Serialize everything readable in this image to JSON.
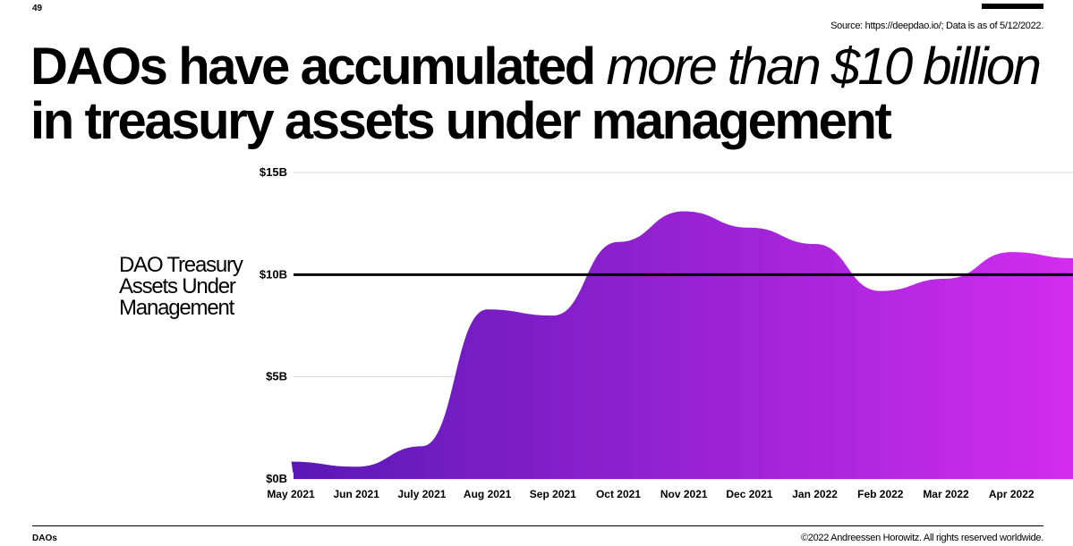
{
  "page": {
    "number": "49",
    "source": "Source: https://deepdao.io/; Data is as of 5/12/2022.",
    "headline_bold": "DAOs have accumulated",
    "headline_italic": "more than $10 billion",
    "headline_line2": "in treasury assets under management",
    "footer_left": "DAOs",
    "footer_right": "©2022 Andreessen Horowitz. All rights reserved worldwide."
  },
  "colors": {
    "area_start": "#5a18b6",
    "area_end": "#d22cf0",
    "reference_line": "#000000",
    "gridline": "#d9d9d9"
  },
  "chart_data": {
    "type": "area",
    "series_label": "DAO Treasury Assets Under Management",
    "x": [
      "May 2021",
      "Jun 2021",
      "July 2021",
      "Aug 2021",
      "Sep 2021",
      "Oct 2021",
      "Nov 2021",
      "Dec 2021",
      "Jan 2022",
      "Feb 2022",
      "Mar 2022",
      "Apr 2022"
    ],
    "y_ticks": [
      "$0B",
      "$5B",
      "$10B",
      "$15B"
    ],
    "ylim": [
      0,
      15
    ],
    "y_unit": "billion USD",
    "points": [
      {
        "x": "May 2021",
        "y": 0.3
      },
      {
        "x": "May 2021",
        "y": 0.85
      },
      {
        "x": "Jun 2021",
        "y": 0.6
      },
      {
        "x": "July 2021",
        "y": 1.6
      },
      {
        "x": "Aug 2021",
        "y": 8.3
      },
      {
        "x": "Sep 2021",
        "y": 8.0
      },
      {
        "x": "Oct 2021",
        "y": 11.6
      },
      {
        "x": "Nov 2021",
        "y": 13.1
      },
      {
        "x": "Dec 2021",
        "y": 12.3
      },
      {
        "x": "Jan 2022",
        "y": 11.5
      },
      {
        "x": "Feb 2022",
        "y": 9.2
      },
      {
        "x": "Mar 2022",
        "y": 9.8
      },
      {
        "x": "Apr 2022",
        "y": 11.1
      },
      {
        "x": "May 2022",
        "y": 10.8
      }
    ],
    "reference_line": 10,
    "grid": true
  }
}
